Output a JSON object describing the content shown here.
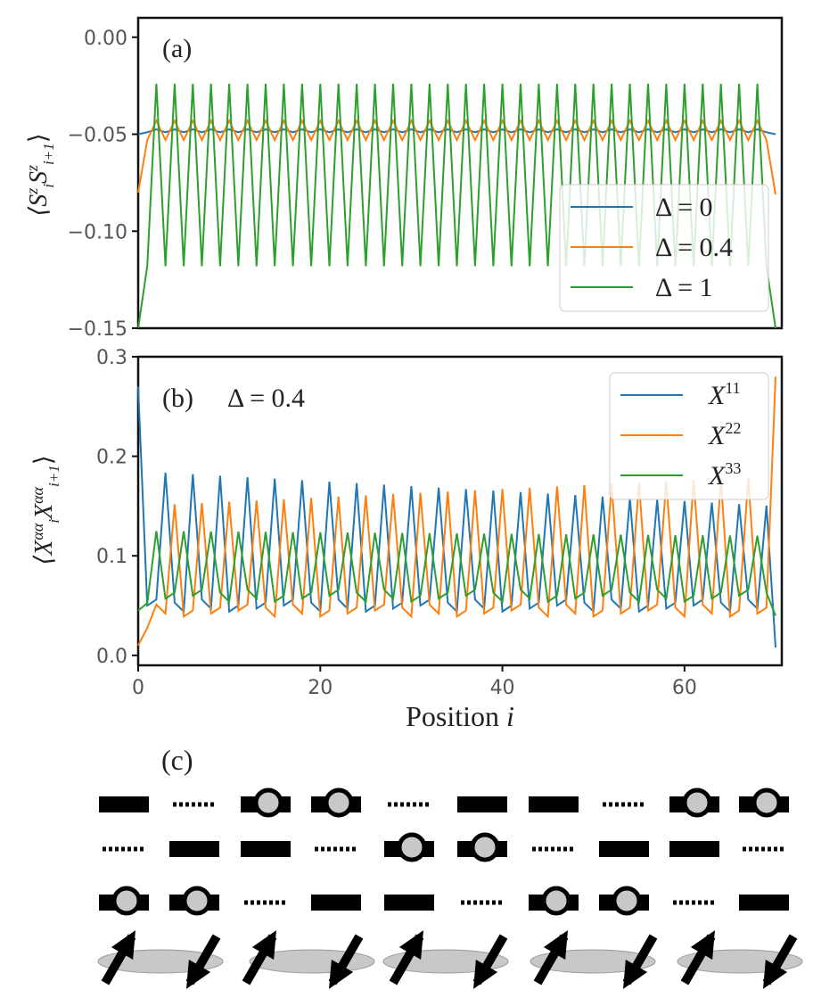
{
  "chart_data": [
    {
      "panel": "(a)",
      "type": "line",
      "ylabel": "⟨S_i^z S_{i+1}^z⟩",
      "ylim": [
        -0.15,
        0.01
      ],
      "xlim": [
        0,
        70
      ],
      "yticks": [
        0.0,
        -0.05,
        -0.1,
        -0.15
      ],
      "ytick_labels": [
        "0.00",
        "−0.05",
        "−0.10",
        "−0.15"
      ],
      "legend_position": "bottom-right",
      "series": [
        {
          "name": "Δ = 0",
          "color": "#1f77b4",
          "pattern": "alternating",
          "start": -0.05,
          "end": -0.05,
          "even": -0.0475,
          "odd": -0.049
        },
        {
          "name": "Δ = 0.4",
          "color": "#ff7f0e",
          "pattern": "alternating",
          "start": -0.08,
          "end": -0.081,
          "even": -0.043,
          "odd": -0.053
        },
        {
          "name": "Δ = 1",
          "color": "#2ca02c",
          "pattern": "alternating",
          "start": -0.15,
          "end": -0.15,
          "even": -0.024,
          "odd": -0.118
        }
      ]
    },
    {
      "panel": "(b)",
      "annotation": "Δ = 0.4",
      "type": "line",
      "xlabel": "Position i",
      "ylabel": "⟨X_i^{αα} X_{i+1}^{αα}⟩",
      "ylim": [
        -0.01,
        0.3
      ],
      "xlim": [
        0,
        70
      ],
      "xticks": [
        0,
        20,
        40,
        60
      ],
      "yticks": [
        0.0,
        0.1,
        0.2,
        0.3
      ],
      "ytick_labels": [
        "0.0",
        "0.1",
        "0.2",
        "0.3"
      ],
      "legend_position": "top-right",
      "series": [
        {
          "name": "X^11",
          "color": "#1f77b4",
          "pattern": "period3",
          "phase": 0,
          "start": 0.27,
          "end": 0.008,
          "peak_first": 0.185,
          "peak_last": 0.15,
          "low": 0.05
        },
        {
          "name": "X^22",
          "color": "#ff7f0e",
          "pattern": "period3",
          "phase": 1,
          "start": 0.01,
          "end": 0.28,
          "peak_first": 0.15,
          "peak_last": 0.18,
          "low": 0.045
        },
        {
          "name": "X^33",
          "color": "#2ca02c",
          "pattern": "period3",
          "phase": 2,
          "start": 0.045,
          "end": 0.04,
          "peak_first": 0.125,
          "peak_last": 0.12,
          "low": 0.06
        }
      ]
    }
  ],
  "text": {
    "panel_a_label": "(a)",
    "panel_b_label": "(b)",
    "panel_b_annotation": "Δ = 0.4",
    "panel_c_label": "(c)",
    "legend_a": [
      "Δ = 0",
      "Δ = 0.4",
      "Δ = 1"
    ],
    "legend_b_base": [
      "X",
      "X",
      "X"
    ],
    "legend_b_sup": [
      "11",
      "22",
      "33"
    ],
    "xlabel_main": "Position ",
    "xlabel_var": "i",
    "ylabel_a": "⟨S",
    "ylabel_b": "⟨X"
  },
  "diagram": {
    "rows": [
      [
        "bar",
        "dots",
        "circle",
        "circle",
        "dots",
        "bar",
        "bar",
        "dots",
        "circle",
        "circle"
      ],
      [
        "dots",
        "bar",
        "bar",
        "dots",
        "circle",
        "circle",
        "dots",
        "bar",
        "bar",
        "dots"
      ],
      [
        "circle",
        "circle",
        "dots",
        "bar",
        "bar",
        "dots",
        "circle",
        "circle",
        "dots",
        "bar"
      ]
    ],
    "spins": [
      "up",
      "down",
      "up",
      "down",
      "up",
      "down",
      "up",
      "down",
      "up",
      "down"
    ],
    "colors": {
      "bond": "#000000",
      "site_fill": "#c8c8c8",
      "ellipse": "#c8c8c8"
    }
  }
}
